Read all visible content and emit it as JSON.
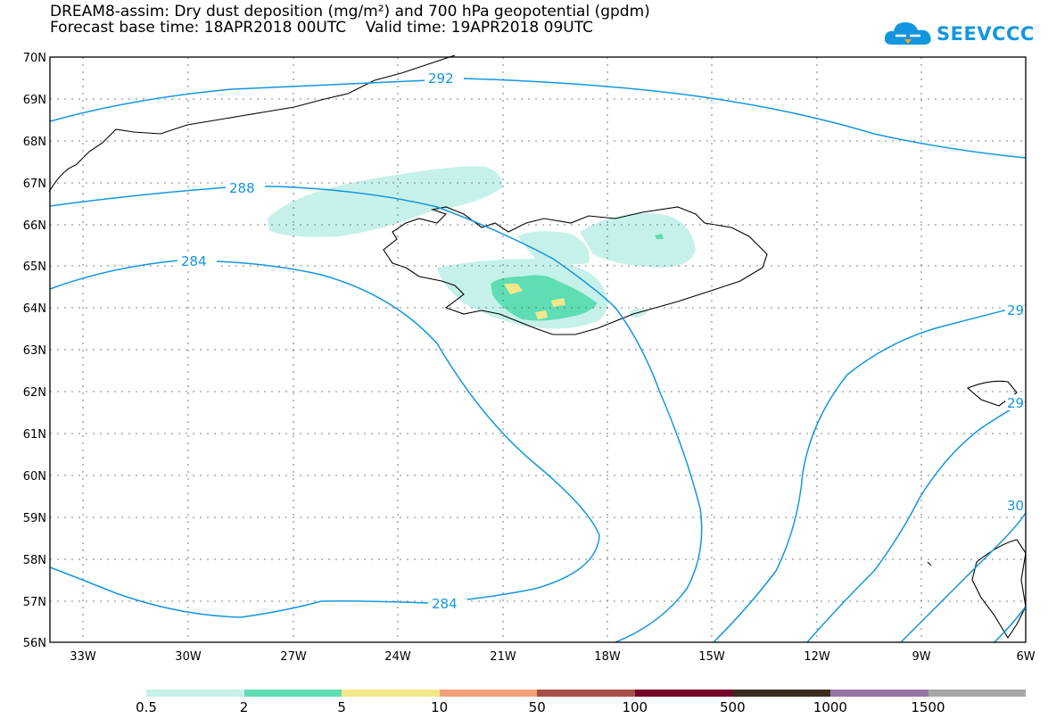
{
  "title": {
    "line1": "DREAM8-assim: Dry dust deposition (mg/m²) and 700 hPa geopotential (gpdm)",
    "line2": "Forecast base time: 18APR2018 00UTC    Valid time: 19APR2018 09UTC"
  },
  "logo": {
    "text": "SEEVCCC",
    "icon": "cloud-icon",
    "color": "#1496de"
  },
  "map": {
    "lat_labels": [
      "70N",
      "69N",
      "68N",
      "67N",
      "66N",
      "65N",
      "64N",
      "63N",
      "62N",
      "61N",
      "60N",
      "59N",
      "58N",
      "57N",
      "56N"
    ],
    "lon_labels": [
      "33W",
      "30W",
      "27W",
      "24W",
      "21W",
      "18W",
      "15W",
      "12W",
      "9W",
      "6W"
    ],
    "contour_color": "#1496de",
    "contour_labels": [
      "292",
      "288",
      "284",
      "284",
      "29",
      "29",
      "30"
    ]
  },
  "legend": {
    "colors": [
      "#c6f1ea",
      "#5fddb4",
      "#f5e88a",
      "#f0a079",
      "#a84e48",
      "#760629",
      "#3b2b1e",
      "#9673a5",
      "#a6a6a6"
    ],
    "labels": [
      "0.5",
      "2",
      "5",
      "10",
      "50",
      "100",
      "500",
      "1000",
      "1500"
    ]
  }
}
